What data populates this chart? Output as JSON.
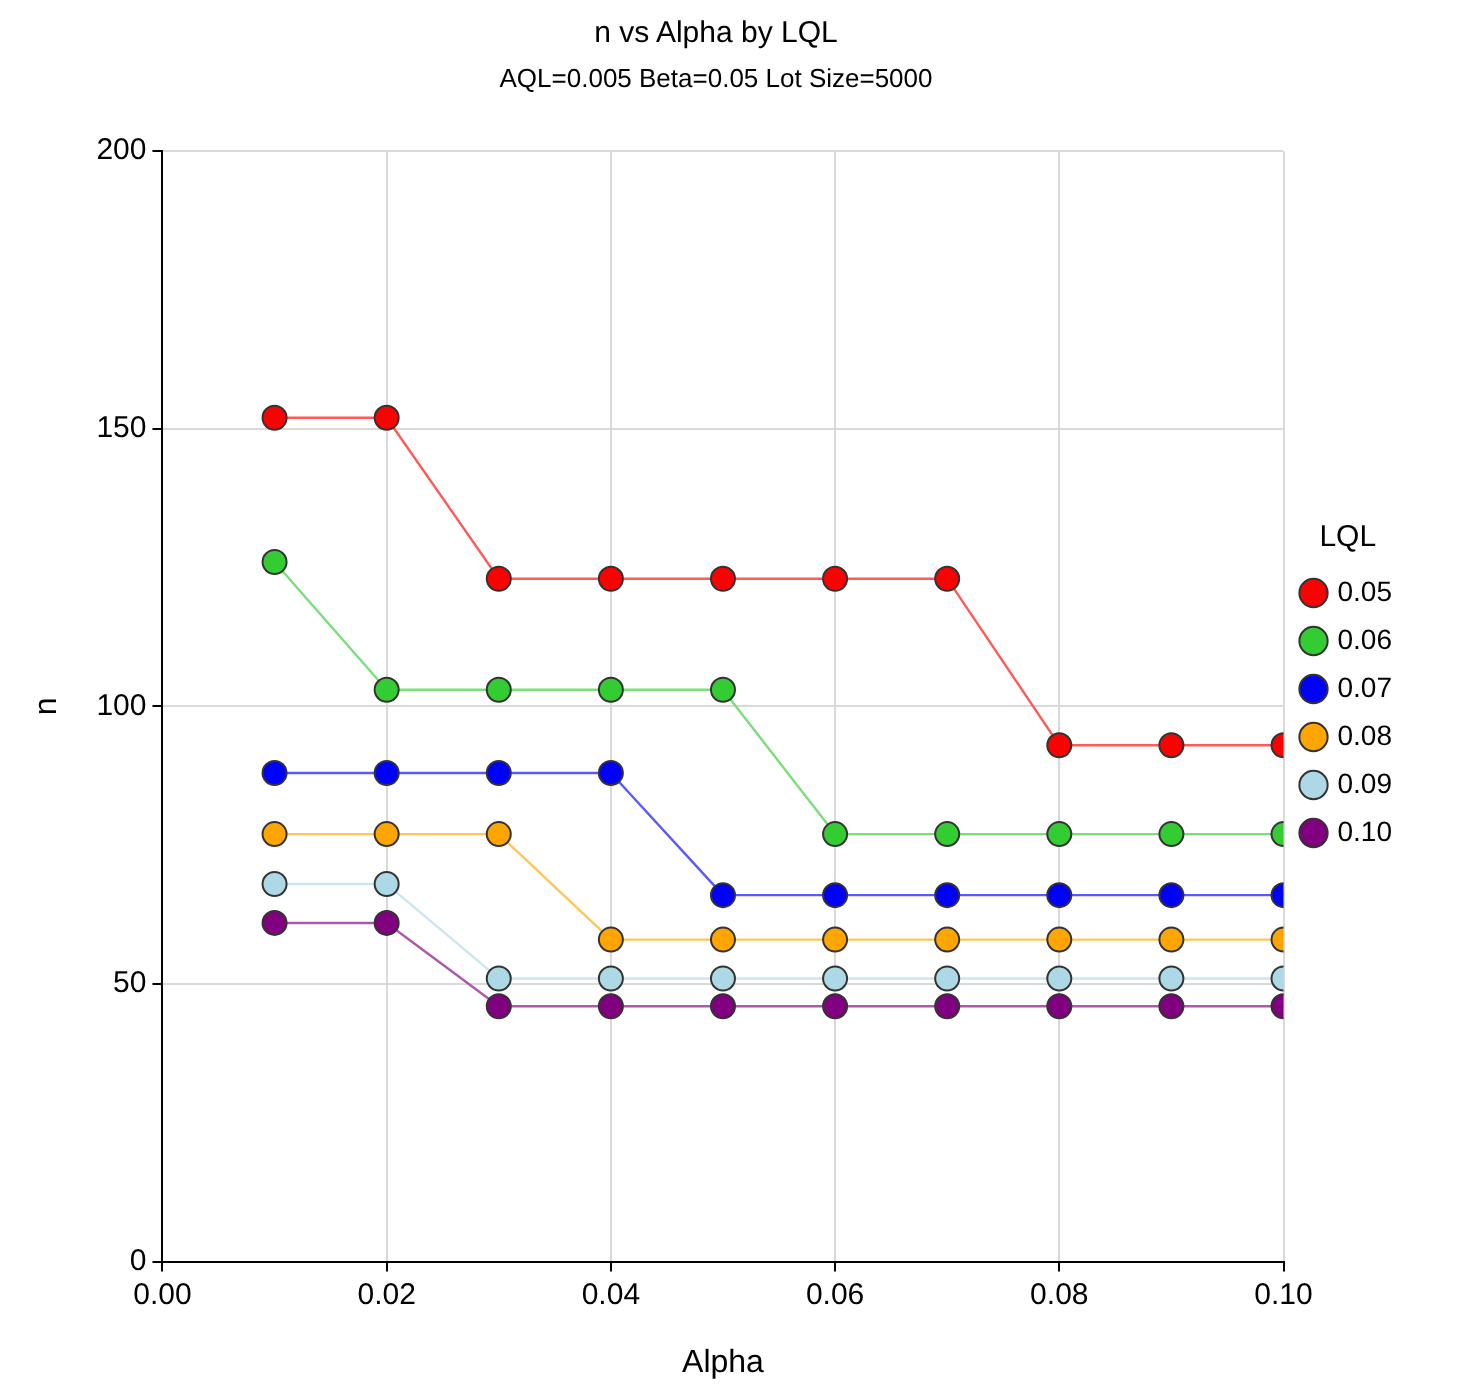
{
  "chart_data": {
    "type": "line",
    "title": "n vs Alpha by LQL",
    "subtitle": "AQL=0.005 Beta=0.05 Lot Size=5000",
    "xlabel": "Alpha",
    "ylabel": "n",
    "legend_title": "LQL",
    "legend": "right",
    "grid": true,
    "marker": "circle",
    "line_style": "solid",
    "x": [
      0.01,
      0.02,
      0.03,
      0.04,
      0.05,
      0.06,
      0.07,
      0.08,
      0.09,
      0.1
    ],
    "xlim": [
      0,
      0.1
    ],
    "xticks": [
      {
        "value": 0,
        "label": "0.00"
      },
      {
        "value": 0.02,
        "label": "0.02"
      },
      {
        "value": 0.04,
        "label": "0.04"
      },
      {
        "value": 0.06,
        "label": "0.06"
      },
      {
        "value": 0.08,
        "label": "0.08"
      },
      {
        "value": 0.1,
        "label": "0.10"
      }
    ],
    "ylim": [
      0,
      200
    ],
    "yticks": [
      0,
      50,
      100,
      150,
      200
    ],
    "series": [
      {
        "name": "0.05",
        "color": "#ff0000",
        "values": [
          152,
          152,
          123,
          123,
          123,
          123,
          123,
          93,
          93,
          93
        ]
      },
      {
        "name": "0.06",
        "color": "#33cc33",
        "values": [
          126,
          103,
          103,
          103,
          103,
          77,
          77,
          77,
          77,
          77
        ]
      },
      {
        "name": "0.07",
        "color": "#0000ff",
        "values": [
          88,
          88,
          88,
          88,
          66,
          66,
          66,
          66,
          66,
          66
        ]
      },
      {
        "name": "0.08",
        "color": "#ffa500",
        "values": [
          77,
          77,
          77,
          58,
          58,
          58,
          58,
          58,
          58,
          58
        ]
      },
      {
        "name": "0.09",
        "color": "#add8e6",
        "values": [
          68,
          68,
          51,
          51,
          51,
          51,
          51,
          51,
          51,
          51
        ]
      },
      {
        "name": "0.10",
        "color": "#800080",
        "values": [
          61,
          61,
          46,
          46,
          46,
          46,
          46,
          46,
          46,
          46
        ]
      }
    ]
  }
}
